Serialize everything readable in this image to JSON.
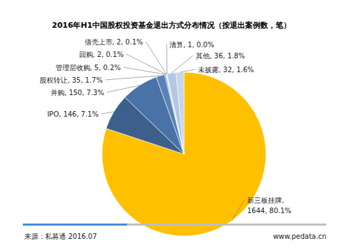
{
  "chart_data": {
    "type": "pie",
    "title": "2016年H1中国股权投资基金退出方式分布情况（按退出案例数，笔）",
    "categories": [
      "新三板挂牌",
      "IPO",
      "并购",
      "股权转让",
      "管理层收购",
      "回购",
      "借壳上市",
      "清算",
      "其他",
      "未披露"
    ],
    "values": [
      1644,
      146,
      150,
      35,
      5,
      2,
      2,
      1,
      36,
      32
    ],
    "value_labels": [
      ", 1644, 80.1%",
      ", 146, 7.1%",
      ", 150, 7.3%",
      ", 35, 1.7%",
      ", 5, 0.2%",
      ", 2, 0.1%",
      ", 2, 0.1%",
      ", 1, 0.0%",
      ", 36, 1.8%",
      ", 32, 1.6%"
    ],
    "colors": [
      "#FFC000",
      "#3C5F8C",
      "#4A72A6",
      "#5A82B6",
      "#6A8FC0",
      "#7C9DC8",
      "#8EABD0",
      "#A0B9D8",
      "#B4C7E2",
      "#C8D6EA"
    ],
    "data_labels": true,
    "annotations": [
      "来源：私募通 2016.07",
      "www.pedata.cn"
    ]
  }
}
